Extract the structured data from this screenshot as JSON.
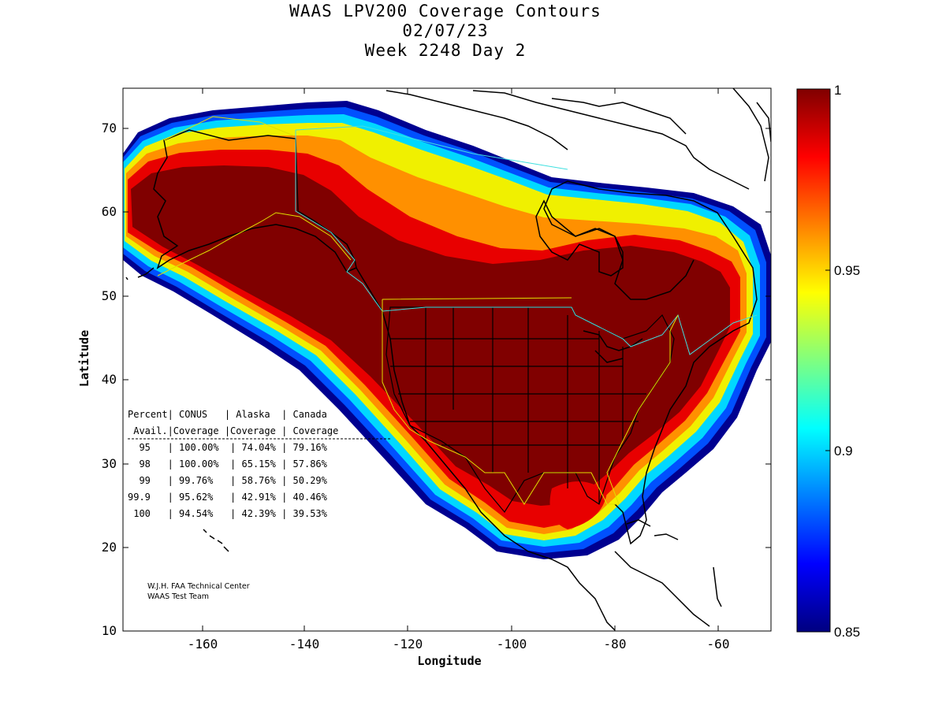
{
  "title": {
    "line1": "WAAS LPV200 Coverage Contours",
    "line2": "02/07/23",
    "line3": "Week 2248 Day 2"
  },
  "axes": {
    "xlabel": "Longitude",
    "ylabel": "Latitude",
    "xticks": [
      "-160",
      "-140",
      "-120",
      "-100",
      "-80",
      "-60"
    ],
    "yticks": [
      "10",
      "20",
      "30",
      "40",
      "50",
      "60",
      "70"
    ],
    "xlim": [
      -175,
      -50
    ],
    "ylim": [
      10,
      75
    ]
  },
  "colorbar": {
    "ticks": [
      "0.85",
      "0.9",
      "0.95",
      "1"
    ],
    "range": [
      0.85,
      1
    ],
    "colormap": "jet"
  },
  "table": {
    "header1": [
      "Percent",
      "CONUS",
      "Alaska",
      "Canada"
    ],
    "header2": [
      "Avail.",
      "Coverage",
      "Coverage",
      "Coverage"
    ],
    "rows": [
      [
        "95",
        "100.00%",
        "74.04%",
        "79.16%"
      ],
      [
        "98",
        "100.00%",
        "65.15%",
        "57.86%"
      ],
      [
        "99",
        "99.76%",
        "58.76%",
        "50.29%"
      ],
      [
        "99.9",
        "95.62%",
        "42.91%",
        "40.46%"
      ],
      [
        "100",
        "94.54%",
        "42.39%",
        "39.53%"
      ]
    ]
  },
  "credit": {
    "line1": "W.J.H. FAA Technical Center",
    "line2": "WAAS Test Team"
  },
  "colors": {
    "dark_red": "#800000",
    "red": "#e00000",
    "orange": "#ff8000",
    "yellow": "#ffff00",
    "cyan": "#00e0ff",
    "blue": "#0040ff",
    "navy": "#000090",
    "boundary_cyan": "#40e0e0",
    "boundary_yellow": "#e0e000"
  }
}
